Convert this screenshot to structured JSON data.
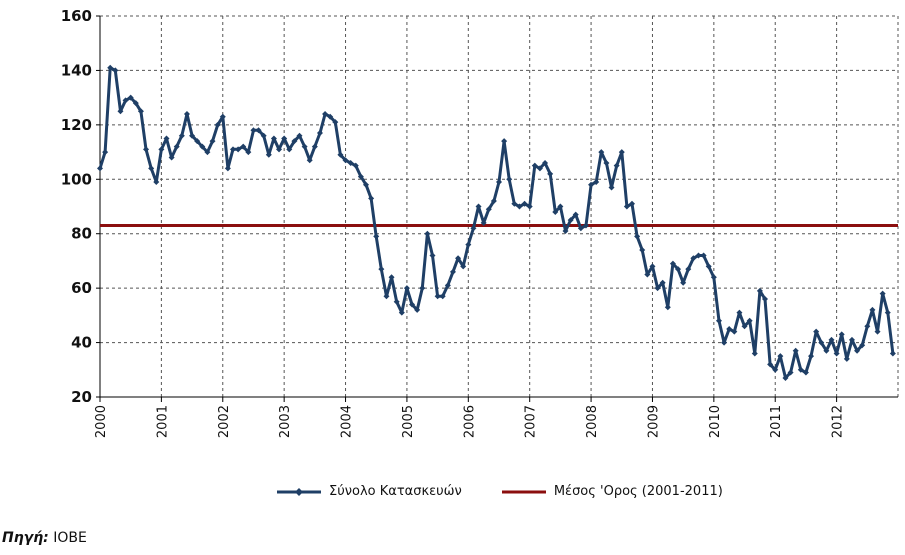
{
  "chart_data": {
    "type": "line",
    "ylim": [
      20,
      160
    ],
    "yticks": [
      "20",
      "40",
      "60",
      "80",
      "100",
      "120",
      "140",
      "160"
    ],
    "x_range": [
      2000,
      2013
    ],
    "xticks": [
      "2000",
      "2001",
      "2002",
      "2003",
      "2004",
      "2005",
      "2006",
      "2007",
      "2008",
      "2009",
      "2010",
      "2011",
      "2012"
    ],
    "grid": true,
    "legend_position": "bottom",
    "colors": {
      "series": "#1f3f66",
      "average": "#8b0e0e",
      "grid": "#555555"
    },
    "series": [
      {
        "name": "Σύνολο Κατασκευών",
        "marker": "diamond",
        "values": [
          104,
          110,
          141,
          140,
          125,
          129,
          130,
          128,
          125,
          111,
          104,
          99,
          111,
          115,
          108,
          112,
          116,
          124,
          116,
          114,
          112,
          110,
          114,
          120,
          123,
          104,
          111,
          111,
          112,
          110,
          118,
          118,
          116,
          109,
          115,
          111,
          115,
          111,
          114,
          116,
          112,
          107,
          112,
          117,
          124,
          123,
          121,
          109,
          107,
          106,
          105,
          101,
          98,
          93,
          79,
          67,
          57,
          64,
          55,
          51,
          60,
          54,
          52,
          60,
          80,
          72,
          57,
          57,
          61,
          66,
          71,
          68,
          76,
          82,
          90,
          84,
          89,
          92,
          99,
          114,
          100,
          91,
          90,
          91,
          90,
          105,
          104,
          106,
          102,
          88,
          90,
          81,
          85,
          87,
          82,
          83,
          98,
          99,
          110,
          106,
          97,
          105,
          110,
          90,
          91,
          79,
          74,
          65,
          68,
          60,
          62,
          53,
          69,
          67,
          62,
          67,
          71,
          72,
          72,
          68,
          64,
          48,
          40,
          45,
          44,
          51,
          46,
          48,
          36,
          59,
          56,
          32,
          30,
          35,
          27,
          29,
          37,
          30,
          29,
          35,
          44,
          40,
          37,
          41,
          36,
          43,
          34,
          41,
          37,
          39,
          46,
          52,
          44,
          58,
          51,
          36
        ]
      },
      {
        "name": "Μέσος 'Ορος (2001-2011)",
        "values": [
          83
        ]
      }
    ]
  },
  "legend": {
    "series_label": "Σύνολο Κατασκευών",
    "average_label": "Μέσος 'Ορος (2001-2011)"
  },
  "source": {
    "label": "Πηγή:",
    "value": "ΙΟΒΕ"
  }
}
